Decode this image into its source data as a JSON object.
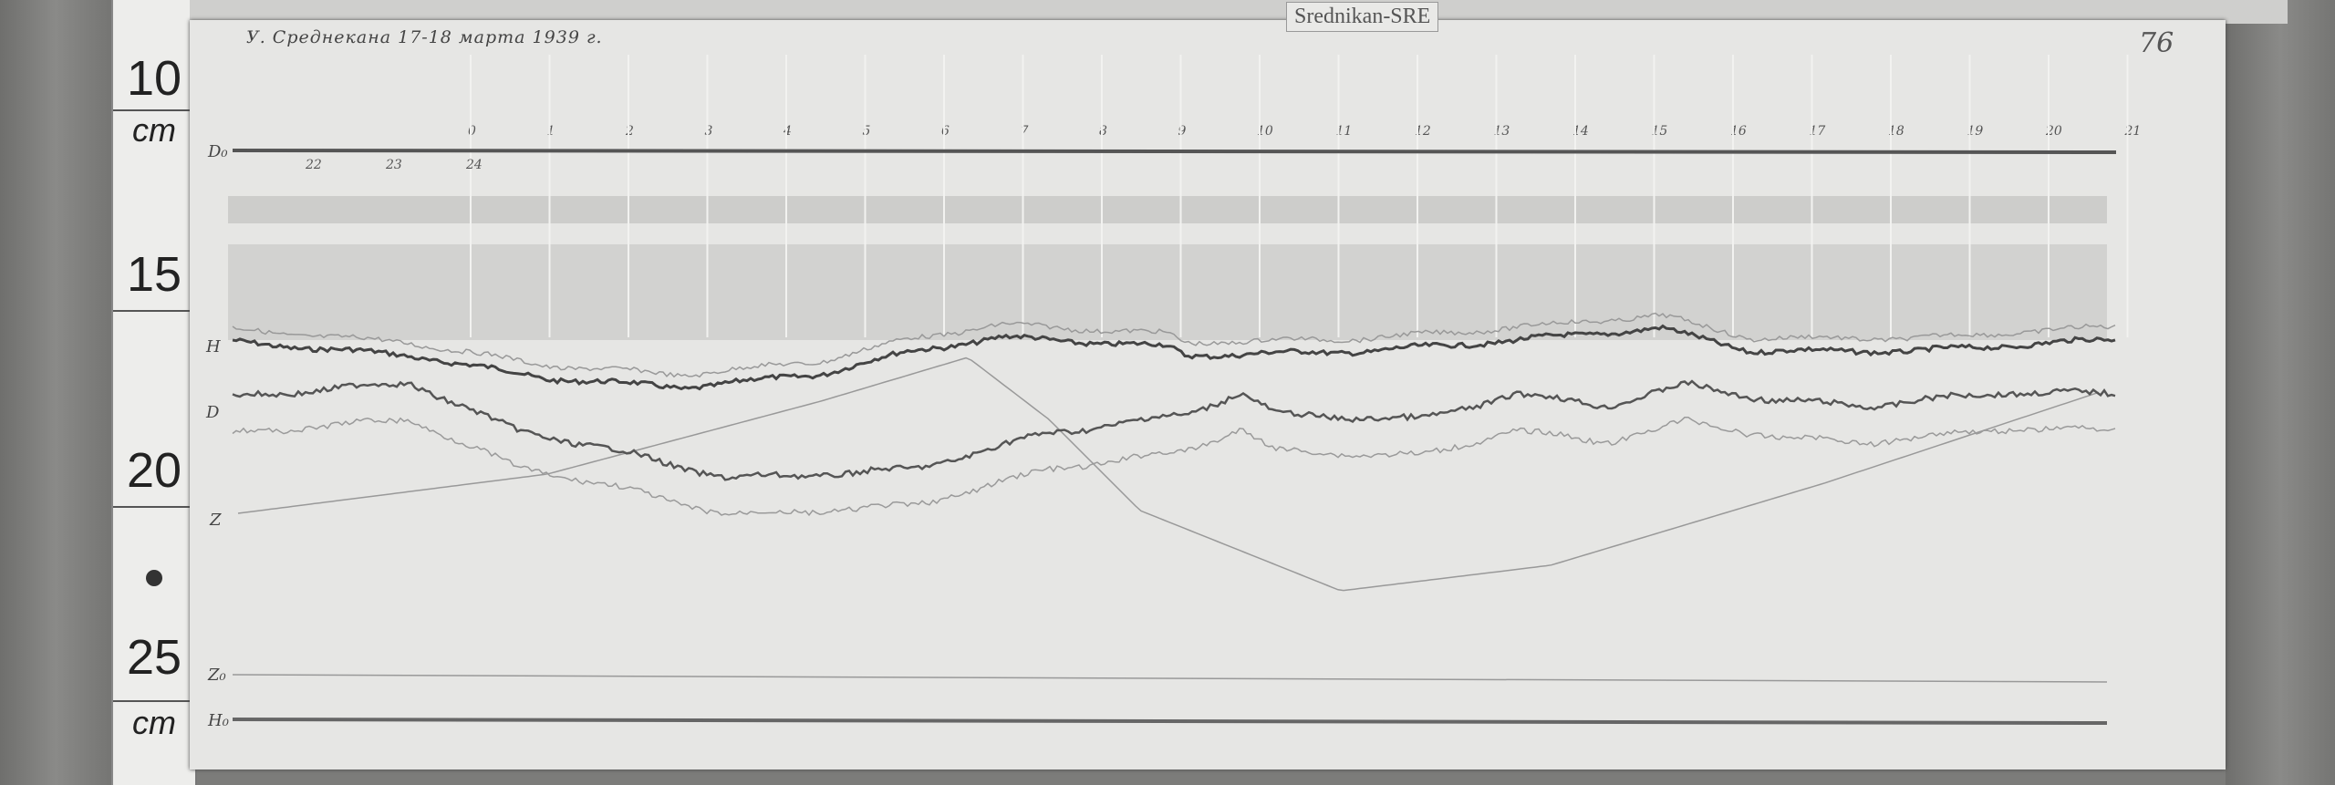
{
  "station_label": "Srednikan-SRE",
  "title": "У. Среднекана 17-18 марта 1939 г.",
  "page_number": "76",
  "ruler": {
    "labels": [
      "10",
      "cm",
      "15",
      "20",
      "25",
      "cm"
    ]
  },
  "trace_labels": {
    "d0": "D₀",
    "h": "H",
    "d": "D",
    "z": "Z",
    "z0": "Z₀",
    "h0": "H₀"
  },
  "hour_marks": [
    "0",
    "1",
    "2",
    "3",
    "4",
    "5",
    "6",
    "7",
    "8",
    "9",
    "10",
    "11",
    "12",
    "13",
    "14",
    "15",
    "16",
    "17",
    "18",
    "19",
    "20",
    "21"
  ],
  "hour_marks_prev": [
    "22",
    "23",
    "24"
  ]
}
